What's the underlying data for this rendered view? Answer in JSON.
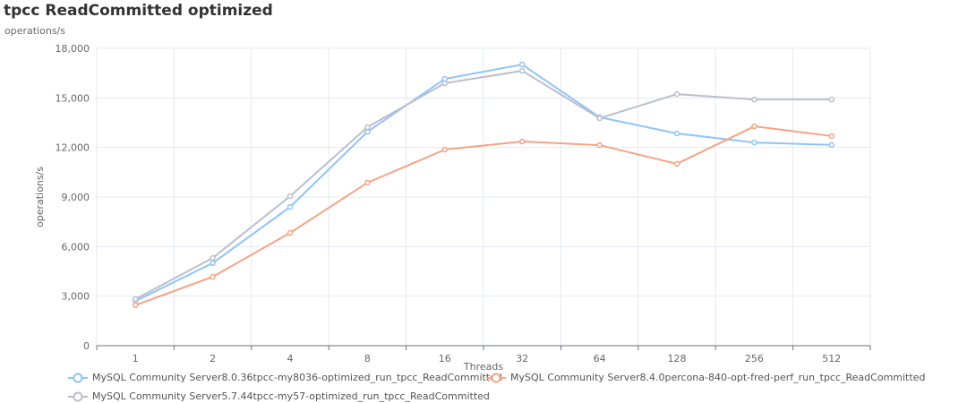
{
  "chart_data": {
    "type": "line",
    "title": "tpcc ReadCommitted optimized",
    "subtitle": "operations/s",
    "xlabel": "Threads",
    "ylabel": "operations/s",
    "categories": [
      "1",
      "2",
      "4",
      "8",
      "16",
      "32",
      "64",
      "128",
      "256",
      "512"
    ],
    "ylim": [
      0,
      18000
    ],
    "yticks": [
      0,
      3000,
      6000,
      9000,
      12000,
      15000,
      18000
    ],
    "ytick_labels": [
      "0",
      "3,000",
      "6,000",
      "9,000",
      "12,000",
      "15,000",
      "18,000"
    ],
    "grid": true,
    "legend_position": "bottom-left",
    "series": [
      {
        "name": "MySQL Community Server8.0.36tpcc-my8036-optimized_run_tpcc_ReadCommitted",
        "color": "#91c4f7",
        "values": [
          2700,
          5000,
          8400,
          12950,
          16150,
          17020,
          13830,
          12850,
          12300,
          12150
        ]
      },
      {
        "name": "MySQL Community Server8.4.0percona-840-opt-fred-perf_run_tpcc_ReadCommitted",
        "color": "#f7a384",
        "values": [
          2450,
          4170,
          6830,
          9870,
          11870,
          12360,
          12140,
          11010,
          13280,
          12690
        ]
      },
      {
        "name": "MySQL Community Server5.7.44tpcc-my57-optimized_run_tpcc_ReadCommitted",
        "color": "#bcbfcb",
        "values": [
          2820,
          5310,
          9050,
          13230,
          15890,
          16640,
          13770,
          15230,
          14900,
          14900
        ]
      }
    ]
  }
}
